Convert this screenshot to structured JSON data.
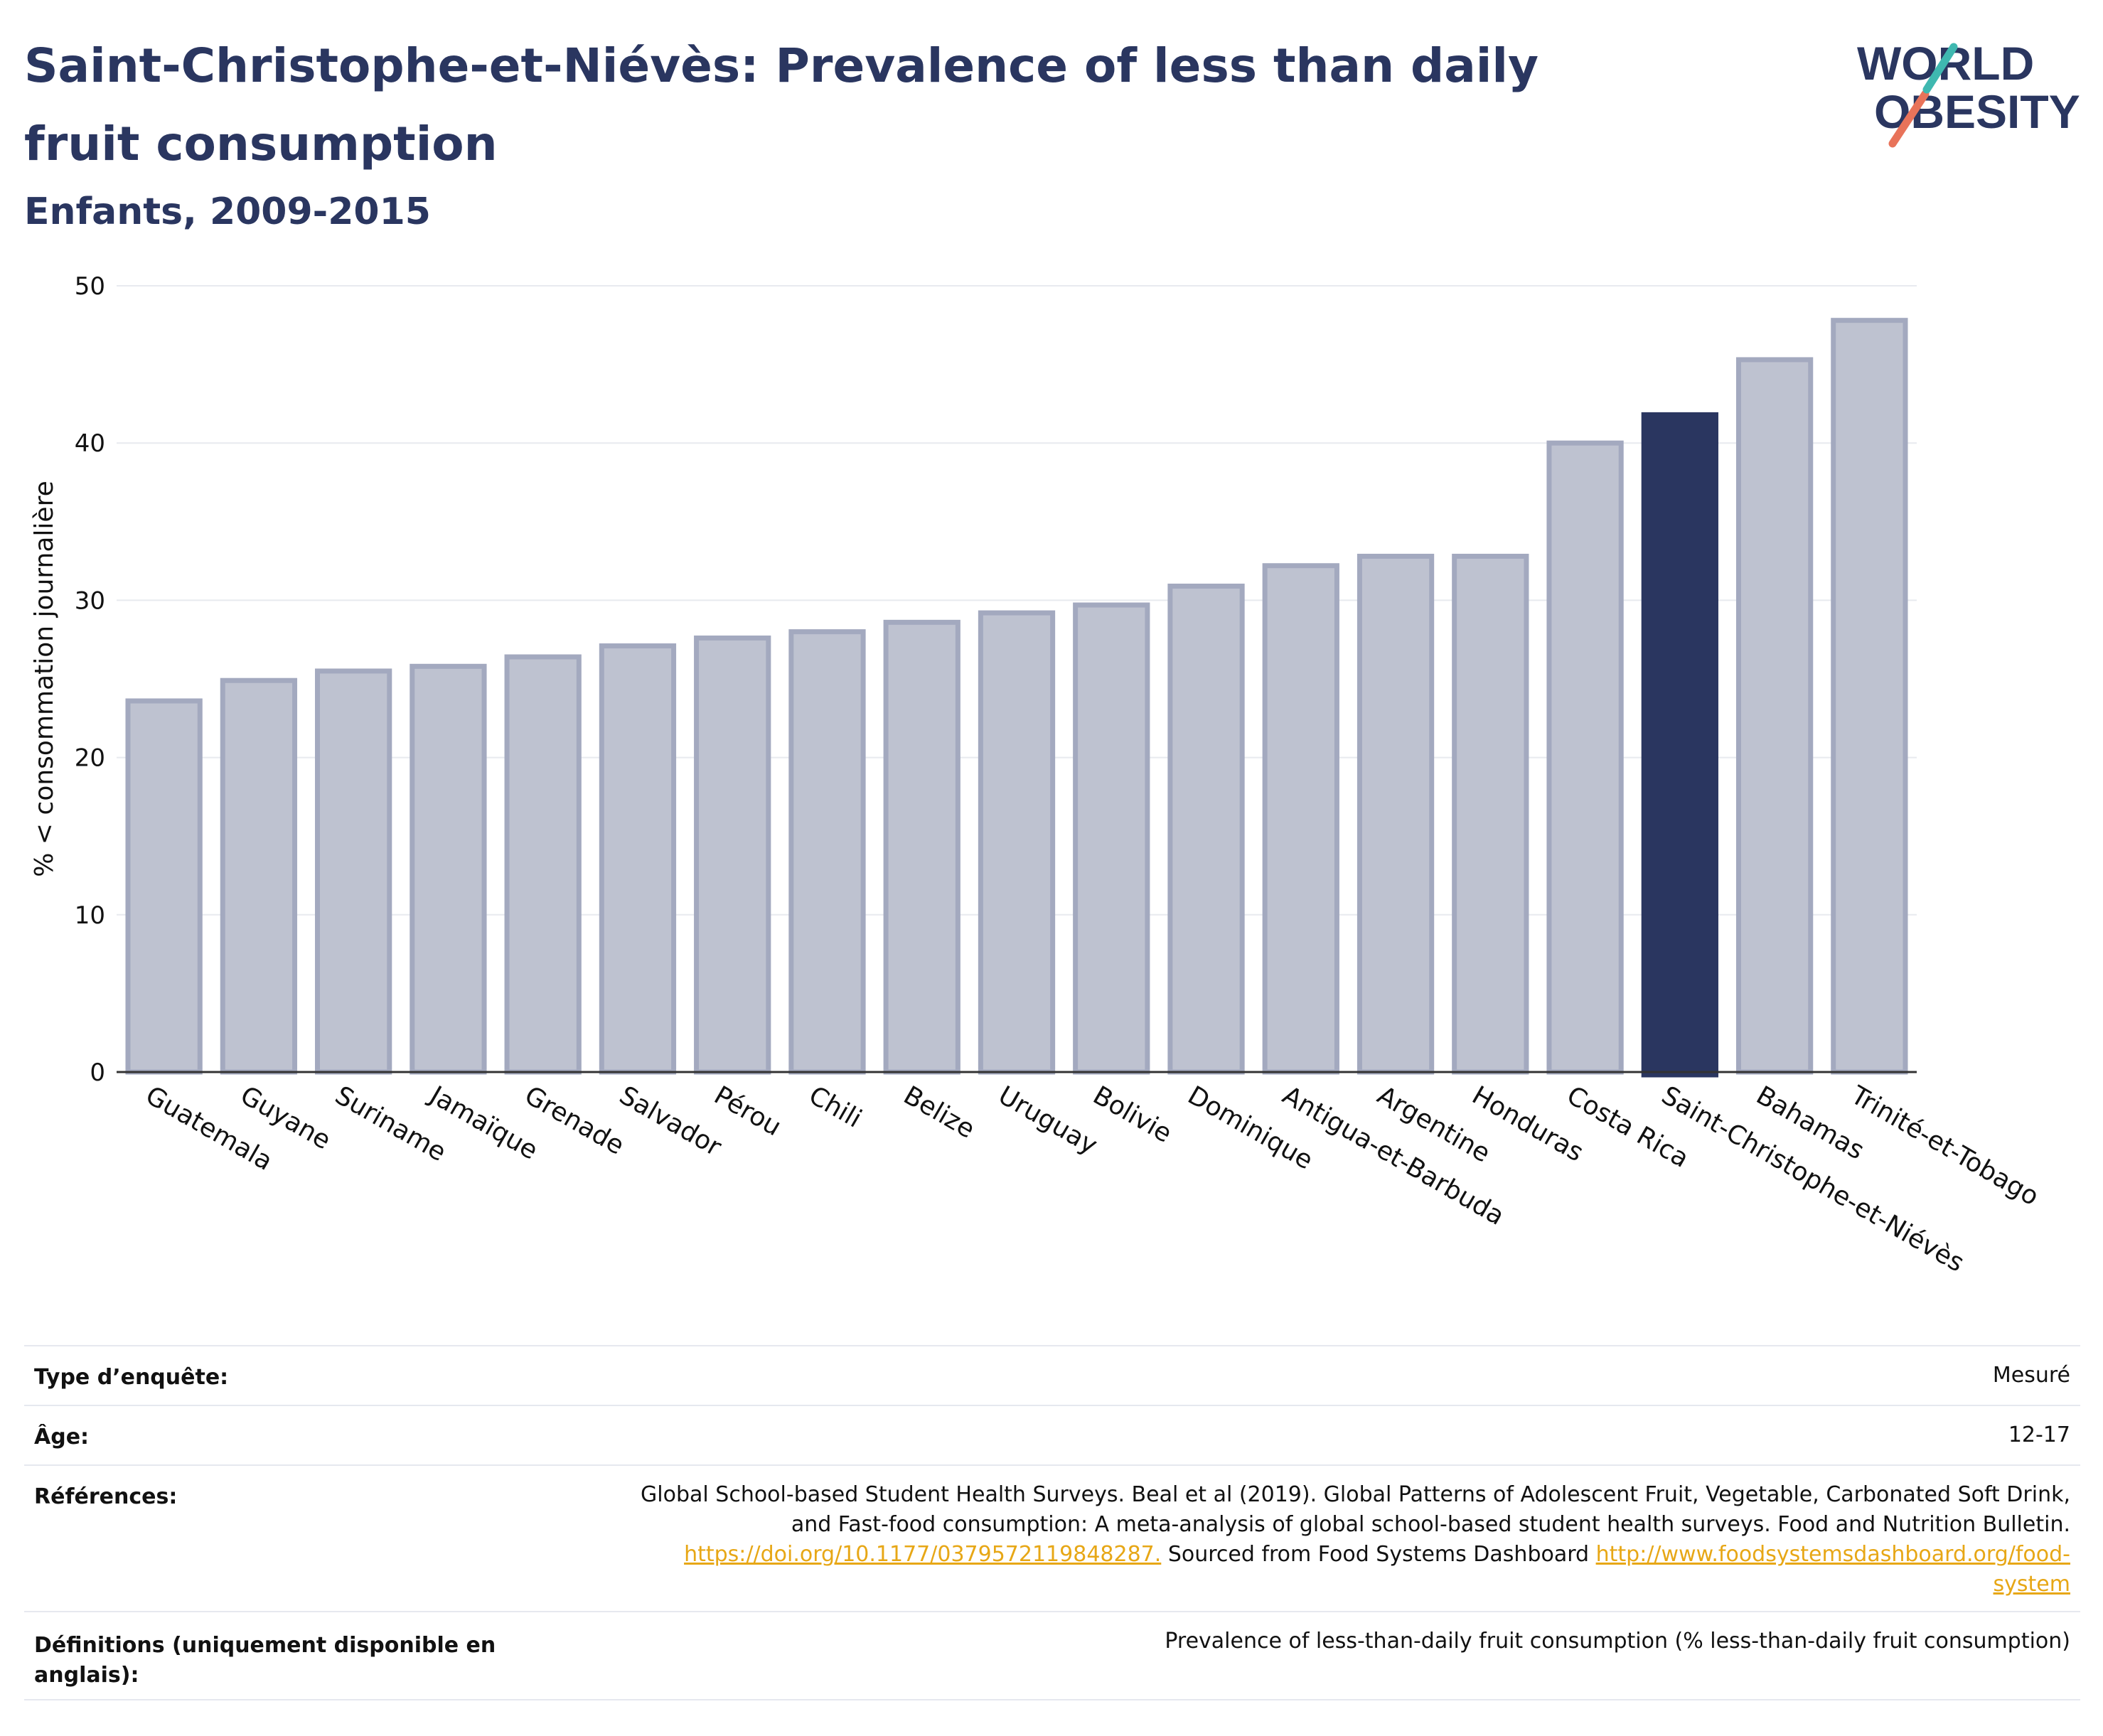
{
  "title": "Saint-Christophe-et-Niévès: Prevalence of less than daily fruit consumption",
  "subtitle": "Enfants, 2009-2015",
  "logo": {
    "line1": "WORLD",
    "line2": "OBESITY"
  },
  "chart_data": {
    "type": "bar",
    "ylabel": "% < consommation journalière",
    "xlabel": "",
    "ylim": [
      0,
      50
    ],
    "yticks": [
      0,
      10,
      20,
      30,
      40,
      50
    ],
    "grid": true,
    "highlight": "Saint-Christophe-et-Niévès",
    "categories": [
      "Guatemala",
      "Guyane",
      "Suriname",
      "Jamaïque",
      "Grenade",
      "Salvador",
      "Pérou",
      "Chili",
      "Belize",
      "Uruguay",
      "Bolivie",
      "Dominique",
      "Antigua-et-Barbuda",
      "Argentine",
      "Honduras",
      "Costa Rica",
      "Saint-Christophe-et-Niévès",
      "Bahamas",
      "Trinité-et-Tobago"
    ],
    "values": [
      23.6,
      24.9,
      25.5,
      25.8,
      26.4,
      27.1,
      27.6,
      28.0,
      28.6,
      29.2,
      29.7,
      30.9,
      32.2,
      32.8,
      32.8,
      40.0,
      41.8,
      45.3,
      47.8
    ],
    "colors": {
      "bar": "#bec2d0",
      "bar_border": "#a3a9bf",
      "highlight": "#2a3660",
      "grid": "#e8eaef"
    }
  },
  "meta": {
    "survey_label": "Type d’enquête:",
    "survey_value": "Mesuré",
    "age_label": "Âge:",
    "age_value": "12-17",
    "ref_label": "Références:",
    "ref_line1": "Global School-based Student Health Surveys. Beal et al (2019). Global Patterns of Adolescent Fruit, Vegetable, Carbonated Soft Drink,",
    "ref_line2": "and Fast-food consumption: A meta-analysis of global school-based student health surveys. Food and Nutrition Bulletin.",
    "ref_link1": "https://doi.org/10.1177/0379572119848287.",
    "ref_mid": " Sourced from Food Systems Dashboard ",
    "ref_link2a": "http://www.foodsystemsdashboard.org/food-",
    "ref_link2b": "system",
    "def_label_1": "Définitions (uniquement disponible en",
    "def_label_2": "anglais):",
    "def_value": "Prevalence of less-than-daily fruit consumption (% less-than-daily fruit consumption)"
  }
}
